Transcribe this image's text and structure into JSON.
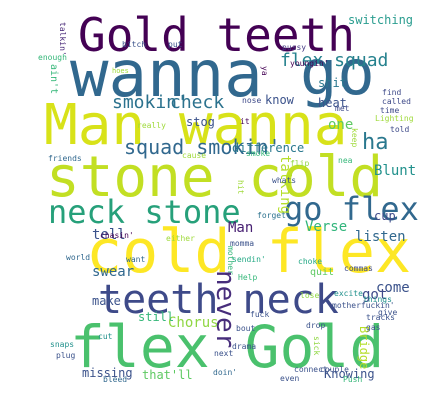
{
  "palette": {
    "purple": "#440154",
    "blue": "#31688e",
    "teal": "#21918c",
    "green": "#35b779",
    "lime": "#90d743",
    "yellow": "#fde725"
  },
  "words": [
    {
      "text": "Gold teeth",
      "color": "#440154"
    },
    {
      "text": "wanna",
      "color": "#31688e"
    },
    {
      "text": "go",
      "color": "#31688e"
    },
    {
      "text": "Man wanna",
      "color": "#d8e219"
    },
    {
      "text": "stone cold",
      "color": "#c2df23"
    },
    {
      "text": "cold flex",
      "color": "#fde725"
    },
    {
      "text": "neck stone",
      "color": "#26a07a"
    },
    {
      "text": "go flex",
      "color": "#31688e"
    },
    {
      "text": "teeth neck",
      "color": "#3e4a89"
    },
    {
      "text": "flex Gold",
      "color": "#4ac16d"
    },
    {
      "text": "flex squad",
      "color": "#26828e"
    },
    {
      "text": "squad smokin'",
      "color": "#31688e"
    },
    {
      "text": "smokin'",
      "color": "#2c728e"
    },
    {
      "text": "check",
      "color": "#2c728e"
    },
    {
      "text": "never",
      "color": "#472d7b"
    },
    {
      "text": "switching",
      "color": "#2a9d8f"
    },
    {
      "text": "shit",
      "color": "#2a788e"
    },
    {
      "text": "heat",
      "color": "#3b528b"
    },
    {
      "text": "know",
      "color": "#3b528b"
    },
    {
      "text": "quit",
      "color": "#5ec962"
    },
    {
      "text": "one",
      "color": "#5ec962"
    },
    {
      "text": "difference",
      "color": "#2a788e"
    },
    {
      "text": "ha",
      "color": "#2a788e"
    },
    {
      "text": "Blunt",
      "color": "#21918c"
    },
    {
      "text": "stog",
      "color": "#3b528b"
    },
    {
      "text": "Man",
      "color": "#482173"
    },
    {
      "text": "Verse",
      "color": "#31b57b"
    },
    {
      "text": "tell",
      "color": "#3b528b"
    },
    {
      "text": "listen",
      "color": "#31688e"
    },
    {
      "text": "swear",
      "color": "#31688e"
    },
    {
      "text": "come",
      "color": "#3b528b"
    },
    {
      "text": "make",
      "color": "#3b528b"
    },
    {
      "text": "Chorus",
      "color": "#90d743"
    },
    {
      "text": "missing",
      "color": "#3b528b"
    },
    {
      "text": "Knowing",
      "color": "#3b528b"
    },
    {
      "text": "that'll",
      "color": "#5ec962"
    },
    {
      "text": "got",
      "color": "#3e4a89"
    },
    {
      "text": "cup",
      "color": "#3e4a89"
    },
    {
      "text": "talking",
      "color": "#b5de2b"
    },
    {
      "text": "Bridge",
      "color": "#b5de2b"
    },
    {
      "text": "talkin'",
      "color": "#482878"
    },
    {
      "text": "bitch",
      "color": "#3b528b"
    },
    {
      "text": "put",
      "color": "#3b528b"
    },
    {
      "text": "pussy",
      "color": "#443983"
    },
    {
      "text": "enough",
      "color": "#35b779"
    },
    {
      "text": "ain't",
      "color": "#35b779"
    },
    {
      "text": "hoes",
      "color": "#9fda3a"
    },
    {
      "text": "youngin'",
      "color": "#440154"
    },
    {
      "text": "ya",
      "color": "#440154"
    },
    {
      "text": "nose",
      "color": "#3e4a89"
    },
    {
      "text": "met",
      "color": "#3e4a89"
    },
    {
      "text": "find",
      "color": "#3e4a89"
    },
    {
      "text": "called",
      "color": "#3e4a89"
    },
    {
      "text": "time",
      "color": "#3e4a89"
    },
    {
      "text": "told",
      "color": "#3e4a89"
    },
    {
      "text": "really",
      "color": "#9fda3a"
    },
    {
      "text": "Lighting",
      "color": "#9fda3a"
    },
    {
      "text": "keep",
      "color": "#9fda3a"
    },
    {
      "text": "friends",
      "color": "#31688e"
    },
    {
      "text": "cause",
      "color": "#9fda3a"
    },
    {
      "text": "smoke",
      "color": "#35b779"
    },
    {
      "text": "nea",
      "color": "#35b779"
    },
    {
      "text": "hit",
      "color": "#9fda3a"
    },
    {
      "text": "whats",
      "color": "#3b528b"
    },
    {
      "text": "forget",
      "color": "#2c728e"
    },
    {
      "text": "momma",
      "color": "#3b528b"
    },
    {
      "text": "chasin'",
      "color": "#440154"
    },
    {
      "text": "either",
      "color": "#9fda3a"
    },
    {
      "text": "sendin'",
      "color": "#22a884"
    },
    {
      "text": "choke",
      "color": "#22a884"
    },
    {
      "text": "world",
      "color": "#31688e"
    },
    {
      "text": "want",
      "color": "#31688e"
    },
    {
      "text": "mother",
      "color": "#35b779"
    },
    {
      "text": "Help",
      "color": "#35b779"
    },
    {
      "text": "commas",
      "color": "#3e4a89"
    },
    {
      "text": "excite",
      "color": "#21918c"
    },
    {
      "text": "things",
      "color": "#21918c"
    },
    {
      "text": "motherfuckin'",
      "color": "#3b528b"
    },
    {
      "text": "tracks",
      "color": "#3b528b"
    },
    {
      "text": "gas",
      "color": "#3b528b"
    },
    {
      "text": "give",
      "color": "#3b528b"
    },
    {
      "text": "fuck",
      "color": "#3b528b"
    },
    {
      "text": "drop",
      "color": "#3b528b"
    },
    {
      "text": "still",
      "color": "#35b779"
    },
    {
      "text": "bout",
      "color": "#3b528b"
    },
    {
      "text": "cut",
      "color": "#21918c"
    },
    {
      "text": "snaps",
      "color": "#21918c"
    },
    {
      "text": "plug",
      "color": "#3b528b"
    },
    {
      "text": "next",
      "color": "#3b528b"
    },
    {
      "text": "drama",
      "color": "#3b528b"
    },
    {
      "text": "connect",
      "color": "#3b528b"
    },
    {
      "text": "couple",
      "color": "#3b528b"
    },
    {
      "text": "even",
      "color": "#3b528b"
    },
    {
      "text": "Push",
      "color": "#35b779"
    },
    {
      "text": "bleed",
      "color": "#31688e"
    },
    {
      "text": "doin'",
      "color": "#31688e"
    },
    {
      "text": "sick",
      "color": "#90d743"
    },
    {
      "text": "lose",
      "color": "#90d743"
    },
    {
      "text": "flip",
      "color": "#90d743"
    },
    {
      "text": "it",
      "color": "#440154"
    }
  ]
}
